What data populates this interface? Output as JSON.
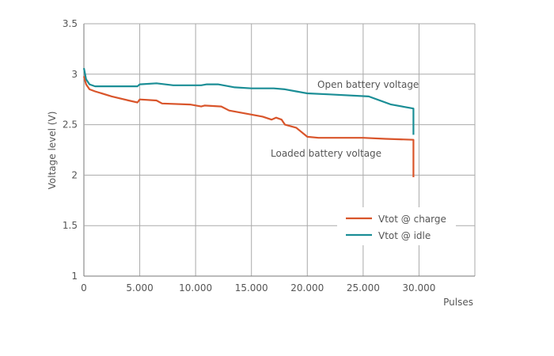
{
  "chart_data": {
    "type": "line",
    "title": "",
    "xlabel": "Pulses",
    "ylabel": "Voltage level (V)",
    "xlim": [
      0,
      35000
    ],
    "ylim": [
      1,
      3.5
    ],
    "grid": true,
    "xticks": [
      0,
      5000,
      10000,
      15000,
      20000,
      25000,
      30000
    ],
    "xtick_labels": [
      "0",
      "5.000",
      "10.000",
      "15.000",
      "20.000",
      "25.000",
      "30.000"
    ],
    "yticks": [
      1,
      1.5,
      2,
      2.5,
      3,
      3.5
    ],
    "ytick_labels": [
      "1",
      "1.5",
      "2",
      "2.5",
      "3",
      "3.5"
    ],
    "legend_position": "bottom-right",
    "annotations": [
      "Open battery voltage",
      "Loaded battery voltage"
    ],
    "series": [
      {
        "name": "Vtot @ charge",
        "color": "#d9552b",
        "x": [
          0,
          200,
          500,
          1000,
          2500,
          4000,
          4800,
          5000,
          6500,
          7000,
          9500,
          10500,
          10800,
          12300,
          13000,
          14500,
          16000,
          16800,
          17200,
          17700,
          18000,
          19000,
          20000,
          21000,
          25000,
          27000,
          29500,
          29500
        ],
        "y": [
          2.98,
          2.9,
          2.85,
          2.83,
          2.78,
          2.74,
          2.72,
          2.75,
          2.74,
          2.71,
          2.7,
          2.68,
          2.69,
          2.68,
          2.64,
          2.61,
          2.58,
          2.55,
          2.57,
          2.55,
          2.5,
          2.47,
          2.38,
          2.37,
          2.37,
          2.36,
          2.35,
          1.98
        ]
      },
      {
        "name": "Vtot @ idle",
        "color": "#1b8e96",
        "x": [
          0,
          200,
          500,
          1000,
          4800,
          5000,
          6500,
          8000,
          10500,
          11000,
          12000,
          13500,
          15000,
          17000,
          18000,
          19000,
          20000,
          22000,
          25500,
          27500,
          29500,
          29500
        ],
        "y": [
          3.06,
          2.95,
          2.9,
          2.88,
          2.88,
          2.9,
          2.91,
          2.89,
          2.89,
          2.9,
          2.9,
          2.87,
          2.86,
          2.86,
          2.85,
          2.83,
          2.81,
          2.8,
          2.78,
          2.7,
          2.66,
          2.4
        ]
      }
    ]
  }
}
